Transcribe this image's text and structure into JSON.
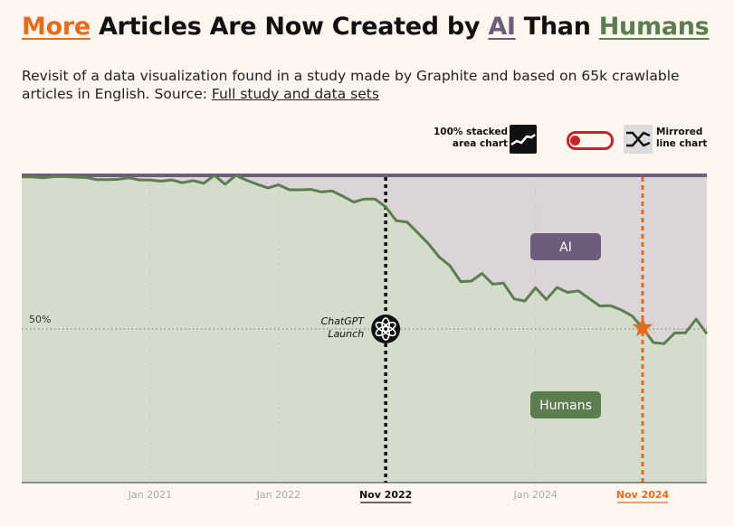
{
  "title": {
    "part1": "More",
    "part2": " Articles Are Now Created by ",
    "part3": "AI",
    "part4": " Than ",
    "part5": "Humans"
  },
  "subtitle": {
    "text": "Revisit of a data visualization found in a study made by Graphite and based on 65k crawlable articles in English. Source: ",
    "link": "Full study and data sets"
  },
  "toggle": {
    "left_label_1": "100% stacked",
    "left_label_2": "area chart",
    "left_icon": "stacked-area-icon",
    "right_label_1": "Mirrored",
    "right_label_2": "line chart",
    "right_icon": "crossed-lines-icon",
    "switch_state": "stacked-area"
  },
  "colors": {
    "human": "#5b7d4f",
    "human_fill": "#d4dccc",
    "ai": "#6e5d7a",
    "ai_fill": "#dbd5d7",
    "accent": "#e36c1f",
    "toggle": "#c0272d"
  },
  "chart_data": {
    "type": "area",
    "title": "More Articles Are Now Created by AI Than Humans",
    "xlabel": "",
    "ylabel": "",
    "ylim": [
      0,
      100
    ],
    "x_ticks": [
      "Jan 2021",
      "Jan 2022",
      "Nov 2022",
      "Jan 2024",
      "Nov 2024"
    ],
    "reference_line": {
      "label": "50%",
      "y": 50
    },
    "annotations": [
      {
        "label": "ChatGPT Launch",
        "x": "2022-11",
        "marker": "openai-logo-icon"
      },
      {
        "label": "Nov 2024",
        "x": "2024-11",
        "marker": "star-icon"
      }
    ],
    "area_labels": {
      "ai": "AI",
      "humans": "Humans"
    },
    "x": [
      "2020-01",
      "2020-02",
      "2020-03",
      "2020-04",
      "2020-05",
      "2020-06",
      "2020-07",
      "2020-08",
      "2020-09",
      "2020-10",
      "2020-11",
      "2020-12",
      "2021-01",
      "2021-02",
      "2021-03",
      "2021-04",
      "2021-05",
      "2021-06",
      "2021-07",
      "2021-08",
      "2021-09",
      "2021-10",
      "2021-11",
      "2021-12",
      "2022-01",
      "2022-02",
      "2022-03",
      "2022-04",
      "2022-05",
      "2022-06",
      "2022-07",
      "2022-08",
      "2022-09",
      "2022-10",
      "2022-11",
      "2022-12",
      "2023-01",
      "2023-02",
      "2023-03",
      "2023-04",
      "2023-05",
      "2023-06",
      "2023-07",
      "2023-08",
      "2023-09",
      "2023-10",
      "2023-11",
      "2023-12",
      "2024-01",
      "2024-02",
      "2024-03",
      "2024-04",
      "2024-05",
      "2024-06",
      "2024-07",
      "2024-08",
      "2024-09",
      "2024-10",
      "2024-11",
      "2024-12",
      "2025-01",
      "2025-02",
      "2025-03",
      "2025-04",
      "2025-05"
    ],
    "series": [
      {
        "name": "Humans",
        "values": [
          99.5,
          99.5,
          99.2,
          99.6,
          99.6,
          99.4,
          99.3,
          98.6,
          98.6,
          98.7,
          99.2,
          98.5,
          98.5,
          98.1,
          98.5,
          97.6,
          98.3,
          97.4,
          100,
          97.1,
          100,
          98.4,
          97.1,
          95.9,
          96.9,
          95.3,
          95.3,
          95.4,
          94.6,
          94.9,
          93.2,
          91.3,
          92.3,
          92.3,
          89.7,
          85.2,
          84.8,
          81.3,
          77.7,
          73.4,
          70.6,
          65.4,
          65.6,
          68.1,
          64.6,
          64.9,
          59.8,
          59.1,
          63.4,
          59.6,
          63.5,
          61.9,
          62.4,
          59.9,
          57.5,
          57.6,
          56.2,
          54.3,
          50.4,
          45.6,
          45.2,
          48.7,
          48.7,
          53.2,
          48.4
        ]
      },
      {
        "name": "AI",
        "values": [
          0.5,
          0.5,
          0.8,
          0.4,
          0.4,
          0.6,
          0.7,
          1.4,
          1.4,
          1.3,
          0.8,
          1.5,
          1.5,
          1.9,
          1.5,
          2.4,
          1.7,
          2.6,
          0,
          2.9,
          0,
          1.6,
          2.9,
          4.1,
          3.1,
          4.7,
          4.7,
          4.6,
          5.4,
          5.1,
          6.8,
          8.7,
          7.7,
          7.7,
          10.3,
          14.8,
          15.2,
          18.7,
          22.3,
          26.6,
          29.4,
          34.6,
          34.4,
          31.9,
          35.4,
          35.1,
          40.2,
          40.9,
          36.6,
          40.4,
          36.5,
          38.1,
          37.6,
          40.1,
          42.5,
          42.4,
          43.8,
          45.7,
          49.6,
          54.4,
          54.8,
          51.3,
          51.3,
          46.8,
          51.6
        ]
      }
    ]
  }
}
